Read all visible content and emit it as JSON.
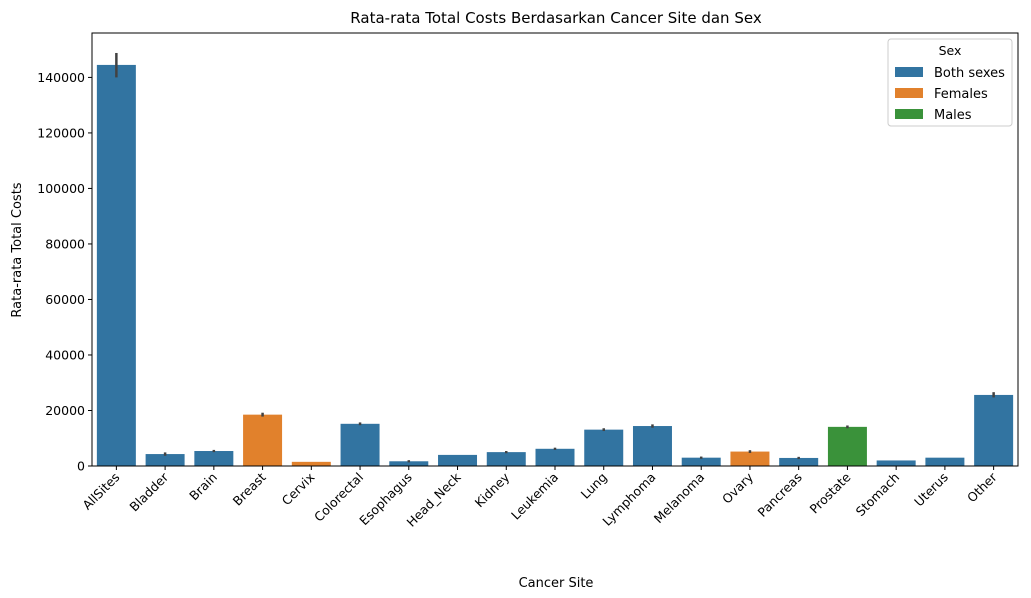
{
  "chart_data": {
    "type": "bar",
    "title": "Rata-rata Total Costs Berdasarkan Cancer Site dan Sex",
    "xlabel": "Cancer Site",
    "ylabel": "Rata-rata Total Costs",
    "ylim": [
      0,
      156000
    ],
    "yticks": [
      0,
      20000,
      40000,
      60000,
      80000,
      100000,
      120000,
      140000
    ],
    "ytick_labels": [
      "0",
      "20000",
      "40000",
      "60000",
      "80000",
      "100000",
      "120000",
      "140000"
    ],
    "categories": [
      "AllSites",
      "Bladder",
      "Brain",
      "Breast",
      "Cervix",
      "Colorectal",
      "Esophagus",
      "Head_Neck",
      "Kidney",
      "Leukemia",
      "Lung",
      "Lymphoma",
      "Melanoma",
      "Ovary",
      "Pancreas",
      "Prostate",
      "Stomach",
      "Uterus",
      "Other"
    ],
    "values": [
      144500,
      4300,
      5400,
      18500,
      1500,
      15200,
      1700,
      4000,
      5000,
      6200,
      13100,
      14400,
      3000,
      5200,
      2900,
      14100,
      2000,
      3000,
      25600
    ],
    "error_low": [
      140000,
      3700,
      5000,
      17800,
      null,
      14700,
      1300,
      null,
      4600,
      5800,
      12600,
      13800,
      2600,
      4700,
      2500,
      13600,
      null,
      null,
      24700
    ],
    "error_high": [
      148800,
      4900,
      5800,
      19200,
      null,
      15700,
      2100,
      null,
      5400,
      6600,
      13600,
      15000,
      3400,
      5700,
      3300,
      14600,
      null,
      null,
      26600
    ],
    "sex": [
      "Both sexes",
      "Both sexes",
      "Both sexes",
      "Females",
      "Females",
      "Both sexes",
      "Both sexes",
      "Both sexes",
      "Both sexes",
      "Both sexes",
      "Both sexes",
      "Both sexes",
      "Both sexes",
      "Females",
      "Both sexes",
      "Males",
      "Both sexes",
      "Both sexes",
      "Both sexes"
    ],
    "legend": {
      "title": "Sex",
      "placement": "top-right",
      "entries": [
        {
          "name": "Both sexes",
          "color": "#3274a1"
        },
        {
          "name": "Females",
          "color": "#e1812c"
        },
        {
          "name": "Males",
          "color": "#3a923a"
        }
      ]
    },
    "error_bar_color": "#424242",
    "grid": false
  }
}
